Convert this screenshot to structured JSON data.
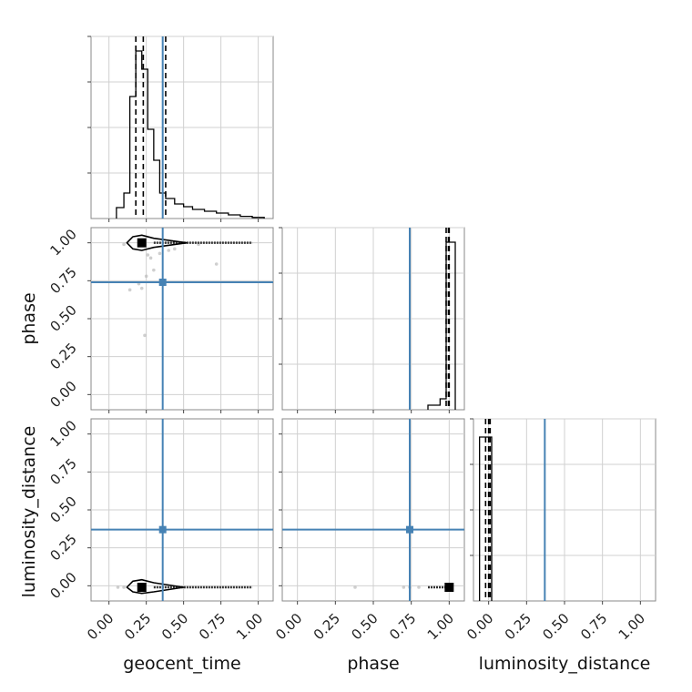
{
  "chart_data": {
    "type": "corner",
    "params": [
      "geocent_time",
      "phase",
      "luminosity_distance"
    ],
    "tick_values": [
      0.0,
      0.25,
      0.5,
      0.75,
      1.0
    ],
    "tick_labels": [
      "0.00",
      "0.25",
      "0.50",
      "0.75",
      "1.00"
    ],
    "truths": {
      "geocent_time": 0.36,
      "phase": 0.74,
      "luminosity_distance": 0.37
    },
    "truth_color": "#4682b4",
    "line_color": "#000000",
    "grid": true,
    "panels": {
      "geocent_time_hist": {
        "range": [
          -0.12,
          1.1
        ],
        "bins": [
          {
            "x0": 0.05,
            "x1": 0.1,
            "h": 0.06
          },
          {
            "x0": 0.1,
            "x1": 0.14,
            "h": 0.14
          },
          {
            "x0": 0.14,
            "x1": 0.18,
            "h": 0.67
          },
          {
            "x0": 0.18,
            "x1": 0.22,
            "h": 0.92
          },
          {
            "x0": 0.22,
            "x1": 0.26,
            "h": 0.82
          },
          {
            "x0": 0.26,
            "x1": 0.3,
            "h": 0.49
          },
          {
            "x0": 0.3,
            "x1": 0.34,
            "h": 0.32
          },
          {
            "x0": 0.34,
            "x1": 0.38,
            "h": 0.14
          },
          {
            "x0": 0.38,
            "x1": 0.44,
            "h": 0.11
          },
          {
            "x0": 0.44,
            "x1": 0.5,
            "h": 0.08
          },
          {
            "x0": 0.5,
            "x1": 0.56,
            "h": 0.065
          },
          {
            "x0": 0.56,
            "x1": 0.64,
            "h": 0.05
          },
          {
            "x0": 0.64,
            "x1": 0.72,
            "h": 0.04
          },
          {
            "x0": 0.72,
            "x1": 0.8,
            "h": 0.03
          },
          {
            "x0": 0.8,
            "x1": 0.88,
            "h": 0.02
          },
          {
            "x0": 0.88,
            "x1": 0.96,
            "h": 0.012
          },
          {
            "x0": 0.96,
            "x1": 1.04,
            "h": 0.006
          }
        ],
        "quantiles": [
          0.18,
          0.23,
          0.38
        ]
      },
      "phase_hist": {
        "range": [
          -0.1,
          1.1
        ],
        "bins": [
          {
            "x0": 0.86,
            "x1": 0.94,
            "h": 0.025
          },
          {
            "x0": 0.94,
            "x1": 0.98,
            "h": 0.06
          },
          {
            "x0": 0.98,
            "x1": 1.04,
            "h": 0.92
          }
        ],
        "quantiles": [
          0.98,
          0.995,
          1.0
        ]
      },
      "luminosity_distance_hist": {
        "range": [
          -0.1,
          1.1
        ],
        "bins": [
          {
            "x0": -0.06,
            "x1": 0.02,
            "h": 0.9
          }
        ],
        "quantiles": [
          -0.02,
          0.0,
          0.01
        ]
      },
      "phase_vs_geocent_time": {
        "xrange": [
          -0.12,
          1.1
        ],
        "yrange": [
          -0.1,
          1.1
        ],
        "center": [
          0.22,
          1.0
        ],
        "contour": [
          [
            0.12,
            1.0
          ],
          [
            0.16,
            1.04
          ],
          [
            0.22,
            1.05
          ],
          [
            0.3,
            1.03
          ],
          [
            0.52,
            1.0
          ],
          [
            0.3,
            0.97
          ],
          [
            0.22,
            0.95
          ],
          [
            0.16,
            0.96
          ]
        ],
        "tail": [
          [
            0.3,
            1.0
          ],
          [
            0.96,
            1.0
          ]
        ],
        "points": [
          [
            0.1,
            0.99
          ],
          [
            0.26,
            0.92
          ],
          [
            0.28,
            0.9
          ],
          [
            0.34,
            0.93
          ],
          [
            0.4,
            0.95
          ],
          [
            0.3,
            0.82
          ],
          [
            0.25,
            0.78
          ],
          [
            0.2,
            0.73
          ],
          [
            0.14,
            0.69
          ],
          [
            0.22,
            0.7
          ],
          [
            0.72,
            0.86
          ],
          [
            0.24,
            0.39
          ],
          [
            0.44,
            0.96
          ],
          [
            0.6,
            0.99
          ]
        ]
      },
      "luminosity_distance_vs_geocent_time": {
        "xrange": [
          -0.12,
          1.1
        ],
        "yrange": [
          -0.1,
          1.1
        ],
        "center": [
          0.22,
          -0.01
        ],
        "contour": [
          [
            0.12,
            -0.01
          ],
          [
            0.16,
            0.03
          ],
          [
            0.22,
            0.04
          ],
          [
            0.3,
            0.02
          ],
          [
            0.5,
            -0.01
          ],
          [
            0.3,
            -0.04
          ],
          [
            0.22,
            -0.05
          ],
          [
            0.16,
            -0.04
          ]
        ],
        "tail": [
          [
            0.3,
            -0.01
          ],
          [
            0.96,
            -0.01
          ]
        ],
        "points": [
          [
            0.06,
            -0.01
          ],
          [
            0.1,
            -0.01
          ]
        ]
      },
      "luminosity_distance_vs_phase": {
        "xrange": [
          -0.1,
          1.1
        ],
        "yrange": [
          -0.1,
          1.1
        ],
        "center": [
          1.0,
          -0.01
        ],
        "tail": [
          [
            0.86,
            -0.01
          ],
          [
            1.0,
            -0.01
          ]
        ],
        "points": [
          [
            0.38,
            -0.01
          ],
          [
            0.7,
            -0.01
          ],
          [
            0.74,
            -0.01
          ],
          [
            0.8,
            -0.01
          ]
        ]
      }
    }
  }
}
